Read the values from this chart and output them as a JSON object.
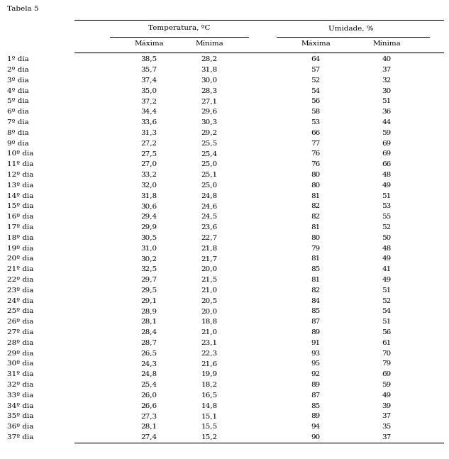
{
  "title": "Tabela 5",
  "col_headers_top": [
    "Temperatura, ºC",
    "Umidade, %"
  ],
  "col_headers_sub": [
    "Máxima",
    "Mínima",
    "Máxima",
    "Mínima"
  ],
  "rows": [
    [
      "1º dia",
      "38,5",
      "28,2",
      "64",
      "40"
    ],
    [
      "2º dia",
      "35,7",
      "31,8",
      "57",
      "37"
    ],
    [
      "3º dia",
      "37,4",
      "30,0",
      "52",
      "32"
    ],
    [
      "4º dia",
      "35,0",
      "28,3",
      "54",
      "30"
    ],
    [
      "5º dia",
      "37,2",
      "27,1",
      "56",
      "51"
    ],
    [
      "6º dia",
      "34,4",
      "29,6",
      "58",
      "36"
    ],
    [
      "7º dia",
      "33,6",
      "30,3",
      "53",
      "44"
    ],
    [
      "8º dia",
      "31,3",
      "29,2",
      "66",
      "59"
    ],
    [
      "9º dia",
      "27,2",
      "25,5",
      "77",
      "69"
    ],
    [
      "10º dia",
      "27,5",
      "25,4",
      "76",
      "69"
    ],
    [
      "11º dia",
      "27,0",
      "25,0",
      "76",
      "66"
    ],
    [
      "12º dia",
      "33,2",
      "25,1",
      "80",
      "48"
    ],
    [
      "13º dia",
      "32,0",
      "25,0",
      "80",
      "49"
    ],
    [
      "14º dia",
      "31,8",
      "24,8",
      "81",
      "51"
    ],
    [
      "15º dia",
      "30,6",
      "24,6",
      "82",
      "53"
    ],
    [
      "16º dia",
      "29,4",
      "24,5",
      "82",
      "55"
    ],
    [
      "17º dia",
      "29,9",
      "23,6",
      "81",
      "52"
    ],
    [
      "18º dia",
      "30,5",
      "22,7",
      "80",
      "50"
    ],
    [
      "19º dia",
      "31,0",
      "21,8",
      "79",
      "48"
    ],
    [
      "20º dia",
      "30,2",
      "21,7",
      "81",
      "49"
    ],
    [
      "21º dia",
      "32,5",
      "20,0",
      "85",
      "41"
    ],
    [
      "22º dia",
      "29,7",
      "21,5",
      "81",
      "49"
    ],
    [
      "23º dia",
      "29,5",
      "21,0",
      "82",
      "51"
    ],
    [
      "24º dia",
      "29,1",
      "20,5",
      "84",
      "52"
    ],
    [
      "25º dia",
      "28,9",
      "20,0",
      "85",
      "54"
    ],
    [
      "26º dia",
      "28,1",
      "18,8",
      "87",
      "51"
    ],
    [
      "27º dia",
      "28,4",
      "21,0",
      "89",
      "56"
    ],
    [
      "28º dia",
      "28,7",
      "23,1",
      "91",
      "61"
    ],
    [
      "29º dia",
      "26,5",
      "22,3",
      "93",
      "70"
    ],
    [
      "30º dia",
      "24,3",
      "21,6",
      "95",
      "79"
    ],
    [
      "31º dia",
      "24,8",
      "19,9",
      "92",
      "69"
    ],
    [
      "32º dia",
      "25,4",
      "18,2",
      "89",
      "59"
    ],
    [
      "33º dia",
      "26,0",
      "16,5",
      "87",
      "49"
    ],
    [
      "34º dia",
      "26,6",
      "14,8",
      "85",
      "39"
    ],
    [
      "35º dia",
      "27,3",
      "15,1",
      "89",
      "37"
    ],
    [
      "36º dia",
      "28,1",
      "15,5",
      "94",
      "35"
    ],
    [
      "37º dia",
      "27,4",
      "15,2",
      "90",
      "37"
    ]
  ],
  "bg_color": "#ffffff",
  "text_color": "#000000",
  "font_size": 7.5,
  "header_font_size": 7.5,
  "title_font_size": 7.5,
  "fig_width": 6.33,
  "fig_height": 6.47,
  "dpi": 100
}
